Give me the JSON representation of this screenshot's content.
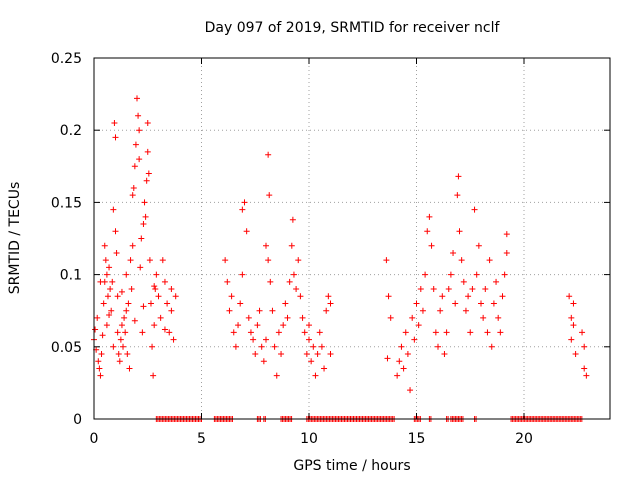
{
  "chart_data": {
    "type": "scatter",
    "title": "Day 097 of 2019, SRMTID for receiver nclf",
    "xlabel": "GPS time / hours",
    "ylabel": "SRMTID / TECUs",
    "xlim": [
      0,
      24
    ],
    "ylim": [
      0,
      0.25
    ],
    "x_ticks": [
      0,
      5,
      10,
      15,
      20
    ],
    "x_tick_labels": [
      "0",
      "5",
      "10",
      "15",
      "20"
    ],
    "y_ticks": [
      0,
      0.05,
      0.1,
      0.15,
      0.2,
      0.25
    ],
    "y_tick_labels": [
      "0",
      "0.05",
      "0.1",
      "0.15",
      "0.2",
      "0.25"
    ],
    "grid": true,
    "marker": "+",
    "series_color": "#ff0000",
    "series": [
      {
        "name": "SRMTID",
        "points": [
          [
            0.0,
            0.055
          ],
          [
            0.05,
            0.062
          ],
          [
            0.1,
            0.048
          ],
          [
            0.15,
            0.07
          ],
          [
            0.2,
            0.04
          ],
          [
            0.25,
            0.035
          ],
          [
            0.3,
            0.03
          ],
          [
            0.35,
            0.045
          ],
          [
            0.4,
            0.058
          ],
          [
            0.45,
            0.08
          ],
          [
            0.5,
            0.095
          ],
          [
            0.5,
            0.12
          ],
          [
            0.55,
            0.11
          ],
          [
            0.6,
            0.1
          ],
          [
            0.6,
            0.065
          ],
          [
            0.65,
            0.085
          ],
          [
            0.7,
            0.105
          ],
          [
            0.75,
            0.09
          ],
          [
            0.8,
            0.075
          ],
          [
            0.85,
            0.095
          ],
          [
            0.9,
            0.05
          ],
          [
            0.9,
            0.145
          ],
          [
            0.95,
            0.205
          ],
          [
            1.0,
            0.195
          ],
          [
            1.0,
            0.13
          ],
          [
            1.05,
            0.115
          ],
          [
            1.1,
            0.085
          ],
          [
            1.1,
            0.06
          ],
          [
            1.15,
            0.045
          ],
          [
            1.2,
            0.04
          ],
          [
            1.25,
            0.055
          ],
          [
            1.3,
            0.065
          ],
          [
            1.35,
            0.05
          ],
          [
            1.4,
            0.07
          ],
          [
            1.45,
            0.06
          ],
          [
            1.5,
            0.075
          ],
          [
            1.5,
            0.1
          ],
          [
            1.55,
            0.045
          ],
          [
            1.6,
            0.08
          ],
          [
            1.65,
            0.035
          ],
          [
            1.7,
            0.11
          ],
          [
            1.75,
            0.09
          ],
          [
            1.8,
            0.12
          ],
          [
            1.8,
            0.155
          ],
          [
            1.85,
            0.16
          ],
          [
            1.9,
            0.175
          ],
          [
            1.95,
            0.19
          ],
          [
            2.0,
            0.222
          ],
          [
            2.05,
            0.21
          ],
          [
            2.1,
            0.2
          ],
          [
            2.1,
            0.18
          ],
          [
            2.15,
            0.105
          ],
          [
            2.2,
            0.125
          ],
          [
            2.25,
            0.06
          ],
          [
            2.3,
            0.135
          ],
          [
            2.35,
            0.15
          ],
          [
            2.4,
            0.14
          ],
          [
            2.45,
            0.165
          ],
          [
            2.5,
            0.185
          ],
          [
            2.5,
            0.205
          ],
          [
            2.55,
            0.17
          ],
          [
            2.6,
            0.11
          ],
          [
            2.65,
            0.08
          ],
          [
            2.7,
            0.05
          ],
          [
            2.75,
            0.03
          ],
          [
            2.8,
            0.065
          ],
          [
            2.85,
            0.09
          ],
          [
            2.9,
            0.1
          ],
          [
            3.0,
            0.085
          ],
          [
            3.1,
            0.07
          ],
          [
            3.2,
            0.11
          ],
          [
            3.3,
            0.095
          ],
          [
            3.4,
            0.08
          ],
          [
            3.5,
            0.06
          ],
          [
            3.6,
            0.075
          ],
          [
            3.7,
            0.055
          ],
          [
            3.8,
            0.085
          ],
          [
            0.3,
            0.095
          ],
          [
            0.7,
            0.072
          ],
          [
            1.3,
            0.088
          ],
          [
            1.9,
            0.068
          ],
          [
            2.3,
            0.078
          ],
          [
            2.8,
            0.092
          ],
          [
            3.3,
            0.062
          ],
          [
            3.6,
            0.09
          ],
          [
            6.1,
            0.11
          ],
          [
            6.2,
            0.095
          ],
          [
            6.3,
            0.075
          ],
          [
            6.4,
            0.085
          ],
          [
            6.5,
            0.06
          ],
          [
            6.6,
            0.05
          ],
          [
            6.7,
            0.065
          ],
          [
            6.8,
            0.08
          ],
          [
            6.9,
            0.1
          ],
          [
            6.9,
            0.145
          ],
          [
            7.0,
            0.15
          ],
          [
            7.1,
            0.13
          ],
          [
            7.2,
            0.07
          ],
          [
            7.3,
            0.06
          ],
          [
            7.4,
            0.055
          ],
          [
            7.5,
            0.045
          ],
          [
            7.6,
            0.065
          ],
          [
            7.7,
            0.075
          ],
          [
            7.8,
            0.05
          ],
          [
            7.9,
            0.04
          ],
          [
            8.0,
            0.055
          ],
          [
            8.0,
            0.12
          ],
          [
            8.1,
            0.11
          ],
          [
            8.1,
            0.183
          ],
          [
            8.15,
            0.155
          ],
          [
            8.2,
            0.095
          ],
          [
            8.3,
            0.075
          ],
          [
            8.4,
            0.05
          ],
          [
            8.5,
            0.03
          ],
          [
            8.6,
            0.06
          ],
          [
            8.7,
            0.045
          ],
          [
            8.8,
            0.065
          ],
          [
            8.9,
            0.08
          ],
          [
            9.0,
            0.07
          ],
          [
            9.1,
            0.095
          ],
          [
            9.2,
            0.12
          ],
          [
            9.25,
            0.138
          ],
          [
            9.3,
            0.1
          ],
          [
            9.4,
            0.09
          ],
          [
            9.5,
            0.11
          ],
          [
            9.6,
            0.085
          ],
          [
            9.7,
            0.07
          ],
          [
            9.8,
            0.06
          ],
          [
            9.9,
            0.045
          ],
          [
            10.0,
            0.065
          ],
          [
            10.0,
            0.055
          ],
          [
            10.1,
            0.04
          ],
          [
            10.2,
            0.05
          ],
          [
            10.3,
            0.03
          ],
          [
            10.4,
            0.045
          ],
          [
            10.5,
            0.06
          ],
          [
            10.6,
            0.05
          ],
          [
            10.7,
            0.035
          ],
          [
            10.8,
            0.075
          ],
          [
            10.9,
            0.085
          ],
          [
            11.0,
            0.08
          ],
          [
            11.0,
            0.045
          ],
          [
            13.6,
            0.11
          ],
          [
            13.65,
            0.042
          ],
          [
            13.7,
            0.085
          ],
          [
            13.8,
            0.07
          ],
          [
            14.1,
            0.03
          ],
          [
            14.2,
            0.04
          ],
          [
            14.3,
            0.05
          ],
          [
            14.4,
            0.035
          ],
          [
            14.5,
            0.06
          ],
          [
            14.6,
            0.045
          ],
          [
            14.7,
            0.02
          ],
          [
            14.8,
            0.07
          ],
          [
            14.9,
            0.055
          ],
          [
            15.0,
            0.08
          ],
          [
            15.1,
            0.065
          ],
          [
            15.2,
            0.09
          ],
          [
            15.3,
            0.075
          ],
          [
            15.4,
            0.1
          ],
          [
            15.5,
            0.13
          ],
          [
            15.6,
            0.14
          ],
          [
            15.7,
            0.12
          ],
          [
            15.8,
            0.09
          ],
          [
            15.9,
            0.06
          ],
          [
            16.0,
            0.05
          ],
          [
            16.1,
            0.075
          ],
          [
            16.2,
            0.085
          ],
          [
            16.3,
            0.045
          ],
          [
            16.4,
            0.06
          ],
          [
            16.5,
            0.09
          ],
          [
            16.6,
            0.1
          ],
          [
            16.7,
            0.115
          ],
          [
            16.8,
            0.08
          ],
          [
            16.9,
            0.155
          ],
          [
            16.95,
            0.168
          ],
          [
            17.0,
            0.13
          ],
          [
            17.1,
            0.11
          ],
          [
            17.2,
            0.095
          ],
          [
            17.3,
            0.075
          ],
          [
            17.4,
            0.085
          ],
          [
            17.5,
            0.06
          ],
          [
            17.6,
            0.09
          ],
          [
            17.7,
            0.145
          ],
          [
            17.8,
            0.1
          ],
          [
            17.9,
            0.12
          ],
          [
            18.0,
            0.08
          ],
          [
            18.1,
            0.07
          ],
          [
            18.2,
            0.09
          ],
          [
            18.3,
            0.06
          ],
          [
            18.4,
            0.11
          ],
          [
            18.5,
            0.05
          ],
          [
            18.6,
            0.08
          ],
          [
            18.7,
            0.095
          ],
          [
            18.8,
            0.07
          ],
          [
            18.9,
            0.06
          ],
          [
            19.0,
            0.085
          ],
          [
            19.1,
            0.1
          ],
          [
            19.2,
            0.128
          ],
          [
            19.2,
            0.115
          ],
          [
            22.1,
            0.085
          ],
          [
            22.2,
            0.07
          ],
          [
            22.2,
            0.055
          ],
          [
            22.3,
            0.065
          ],
          [
            22.3,
            0.08
          ],
          [
            22.4,
            0.045
          ],
          [
            22.7,
            0.06
          ],
          [
            22.8,
            0.05
          ],
          [
            22.8,
            0.035
          ],
          [
            22.9,
            0.03
          ]
        ]
      }
    ],
    "zero_segments": [
      [
        2.9,
        5.0
      ],
      [
        5.6,
        6.5
      ],
      [
        7.6,
        7.8
      ],
      [
        7.9,
        8.0
      ],
      [
        8.7,
        9.2
      ],
      [
        9.9,
        14.0
      ],
      [
        14.9,
        15.2
      ],
      [
        15.6,
        15.7
      ],
      [
        16.4,
        16.5
      ],
      [
        16.6,
        17.2
      ],
      [
        17.7,
        17.8
      ],
      [
        19.4,
        22.7
      ]
    ]
  }
}
